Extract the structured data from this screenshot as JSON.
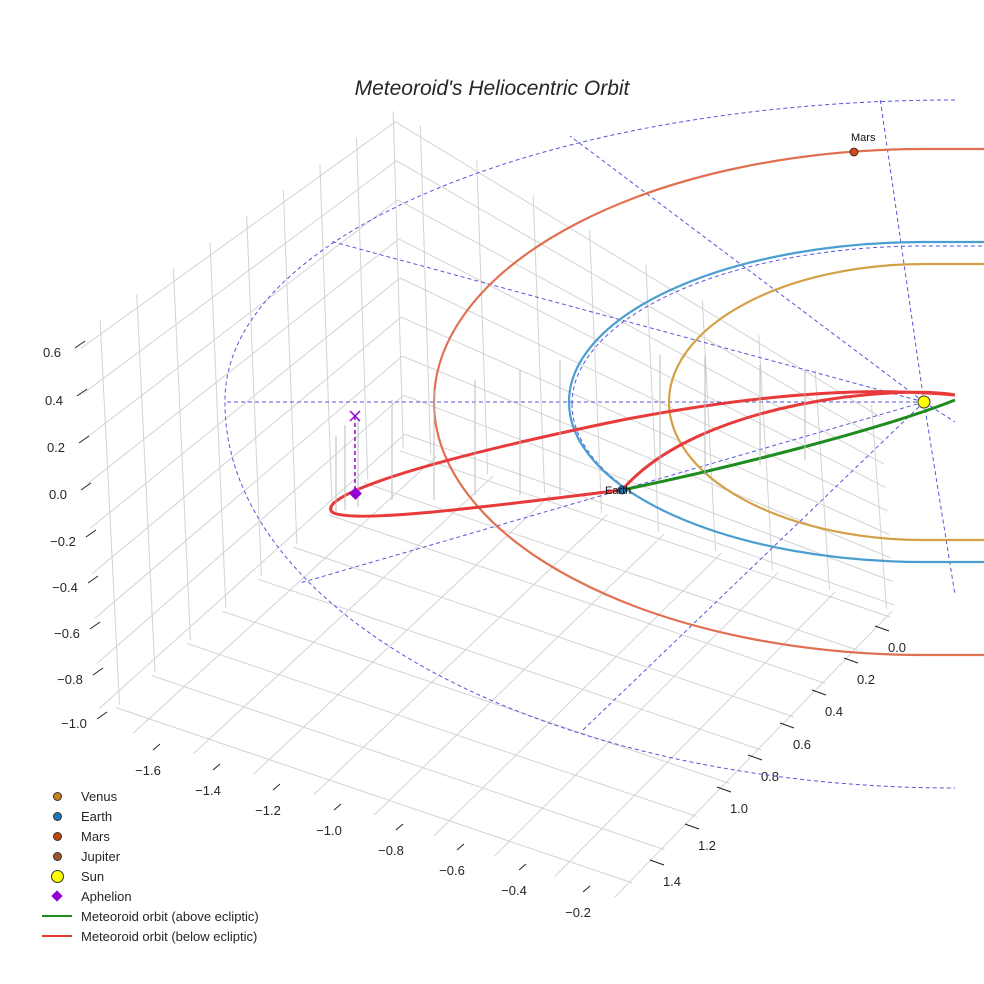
{
  "chart_data": {
    "type": "scatter",
    "subtype": "3d-orbit",
    "title": "Meteoroid's Heliocentric Orbit",
    "axes": {
      "x": {
        "ticks": [
          "−1.6",
          "−1.4",
          "−1.2",
          "−1.0",
          "−0.8",
          "−0.6",
          "−0.4",
          "−0.2"
        ],
        "range": [
          -1.7,
          -0.1
        ]
      },
      "y": {
        "ticks": [
          "0.0",
          "0.2",
          "0.4",
          "0.6",
          "0.8",
          "1.0",
          "1.2",
          "1.4"
        ],
        "range": [
          -0.1,
          1.5
        ]
      },
      "z": {
        "ticks": [
          "0.6",
          "0.4",
          "0.2",
          "0.0",
          "−0.2",
          "−0.4",
          "−0.6",
          "−0.8",
          "−1.0"
        ],
        "range": [
          -1.0,
          0.65
        ]
      }
    },
    "grid": true,
    "legend_position": "bottom-left",
    "series": [
      {
        "name": "Venus",
        "kind": "orbit",
        "color": "#d4a046",
        "radius_au": 0.72
      },
      {
        "name": "Earth",
        "kind": "orbit",
        "color": "#4a9fd0",
        "radius_au": 1.0
      },
      {
        "name": "Mars",
        "kind": "orbit",
        "color": "#e07050",
        "radius_au": 1.52
      },
      {
        "name": "Meteoroid orbit (above ecliptic)",
        "kind": "line",
        "color": "#1e8c1e"
      },
      {
        "name": "Meteoroid orbit (below ecliptic)",
        "kind": "line",
        "color": "#e83a3a"
      }
    ],
    "points": [
      {
        "name": "Earth",
        "label": "Earth",
        "color": "#1f6fb0"
      },
      {
        "name": "Mars",
        "label": "Mars",
        "color": "#d04a1a"
      },
      {
        "name": "Sun",
        "color": "#ffff00"
      },
      {
        "name": "Aphelion",
        "color": "#9400d3",
        "marker": "diamond"
      },
      {
        "name": "Aphelion projection",
        "color": "#9400d3",
        "marker": "x"
      }
    ],
    "reference_color": "#5555dd"
  },
  "legend": [
    {
      "label": "Venus",
      "marker": "dot",
      "color": "#c8821e"
    },
    {
      "label": "Earth",
      "marker": "dot",
      "color": "#1f77b4"
    },
    {
      "label": "Mars",
      "marker": "dot",
      "color": "#c1440e"
    },
    {
      "label": "Jupiter",
      "marker": "dot",
      "color": "#a0522d"
    },
    {
      "label": "Sun",
      "marker": "big-dot",
      "color": "#ffff00"
    },
    {
      "label": "Aphelion",
      "marker": "diamond",
      "color": "#9400d3"
    },
    {
      "label": "Meteoroid orbit (above ecliptic)",
      "marker": "line",
      "color": "#1e8c1e"
    },
    {
      "label": "Meteoroid orbit (below ecliptic)",
      "marker": "line",
      "color": "#e83a3a"
    }
  ]
}
